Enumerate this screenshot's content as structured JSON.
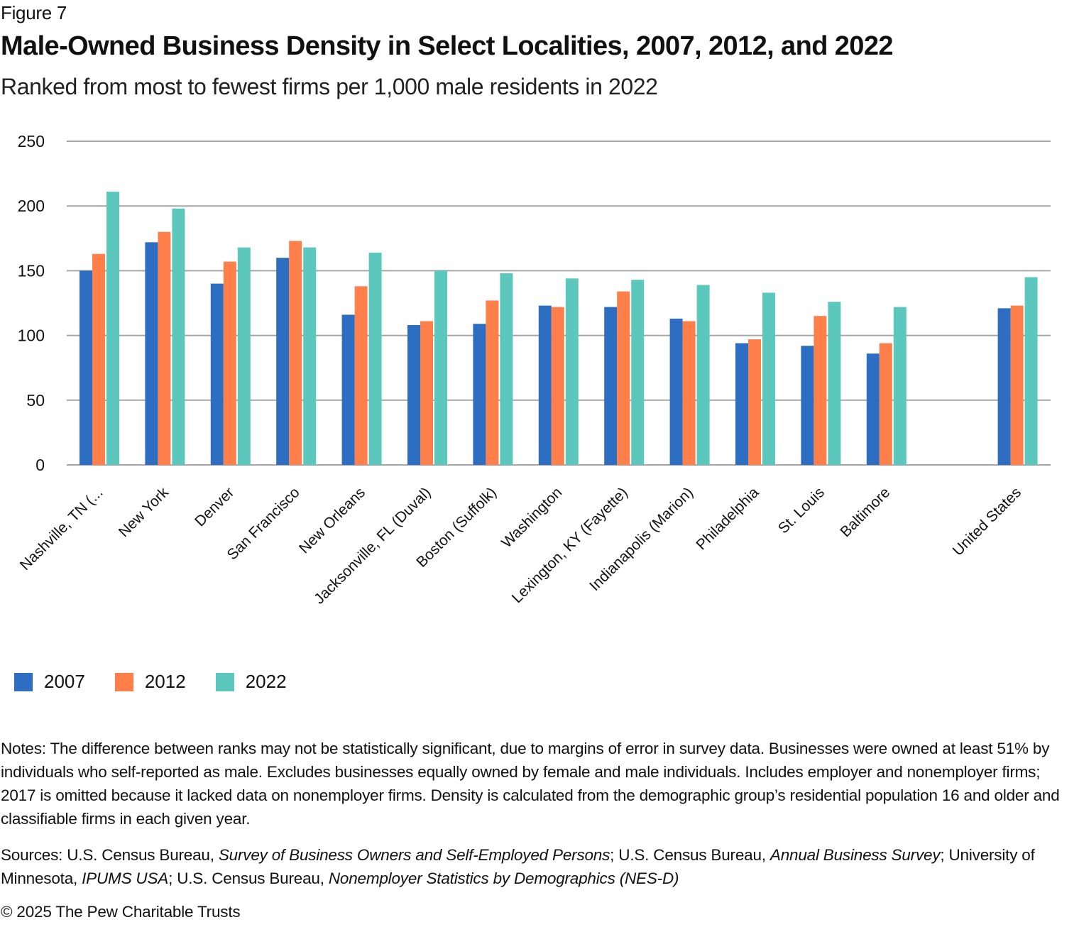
{
  "figure_label": "Figure 7",
  "title": "Male-Owned Business Density in Select Localities, 2007, 2012, and 2022",
  "subtitle": "Ranked from most to fewest firms per 1,000 male residents in 2022",
  "colors": {
    "2007": "#2d6ec3",
    "2012": "#ff7f4a",
    "2022": "#5cc7bd",
    "grid": "#a6a6a6"
  },
  "chart_data": {
    "type": "bar",
    "title": "Male-Owned Business Density in Select Localities, 2007, 2012, and 2022",
    "xlabel": "",
    "ylabel": "",
    "ylim": [
      0,
      250
    ],
    "yticks": [
      "0",
      "50",
      "100",
      "150",
      "200",
      "250"
    ],
    "grid": true,
    "legend_position": "bottom-left",
    "categories": [
      "Nashville, TN (...",
      "New York",
      "Denver",
      "San Francisco",
      "New Orleans",
      "Jacksonville, FL (Duval)",
      "Boston (Suffolk)",
      "Washington",
      "Lexington, KY (Fayette)",
      "Indianapolis (Marion)",
      "Philadelphia",
      "St. Louis",
      "Baltimore",
      "",
      "United States"
    ],
    "series": [
      {
        "name": "2007",
        "values": [
          150,
          172,
          140,
          160,
          116,
          108,
          109,
          123,
          122,
          113,
          94,
          92,
          86,
          null,
          121
        ]
      },
      {
        "name": "2012",
        "values": [
          163,
          180,
          157,
          173,
          138,
          111,
          127,
          122,
          134,
          111,
          97,
          115,
          94,
          null,
          123
        ]
      },
      {
        "name": "2022",
        "values": [
          211,
          198,
          168,
          168,
          164,
          150,
          148,
          144,
          143,
          139,
          133,
          126,
          122,
          null,
          145
        ]
      }
    ]
  },
  "legend": [
    {
      "label": "2007"
    },
    {
      "label": "2012"
    },
    {
      "label": "2022"
    }
  ],
  "notes": "Notes: The difference between ranks may not be statistically significant, due to margins of error in survey data. Businesses were owned at least 51% by individuals who self-reported as male. Excludes businesses equally owned by female and male individuals. Includes employer and nonemployer firms; 2017 is omitted because it lacked data on nonemployer firms. Density is calculated from the demographic group’s residential population 16 and older and classifiable firms in each given year.",
  "sources": {
    "prefix": "Sources: U.S. Census Bureau, ",
    "src1": "Survey of Business Owners and Self-Employed Persons",
    "sep1": "; U.S. Census Bureau, ",
    "src2": "Annual Business Survey",
    "sep2": "; University of Minnesota, ",
    "src3": "IPUMS USA",
    "sep3": "; U.S. Census Bureau, ",
    "src4": "Nonemployer Statistics by Demographics (NES-D)"
  },
  "copyright": "© 2025 The Pew Charitable Trusts"
}
